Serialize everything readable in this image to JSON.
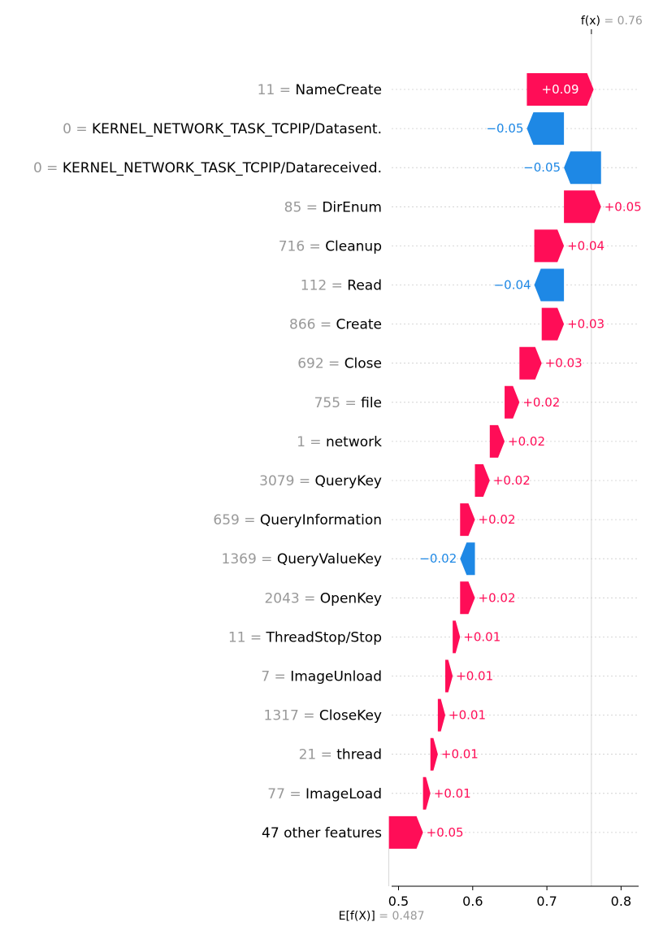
{
  "chart_data": {
    "type": "waterfall",
    "fx_label": "f(x)",
    "fx_value_text": " = 0.76",
    "fx_value": 0.76,
    "ex_label": "E[f(X)]",
    "ex_value_text": " = 0.487",
    "ex_value": 0.487,
    "xlim": [
      0.48,
      0.825
    ],
    "xticks": [
      0.5,
      0.6,
      0.7,
      0.8
    ],
    "xtick_labels": [
      "0.5",
      "0.6",
      "0.7",
      "0.8"
    ],
    "colors": {
      "positive": "#ff0d57",
      "negative": "#1e88e5",
      "value_text": "#999999",
      "label_text": "#000000"
    },
    "features": [
      {
        "value": "11",
        "name": "NameCreate",
        "contribution": 0.09,
        "label": "+0.09"
      },
      {
        "value": "0",
        "name": "KERNEL_NETWORK_TASK_TCPIP/Datasent.",
        "contribution": -0.05,
        "label": "−0.05"
      },
      {
        "value": "0",
        "name": "KERNEL_NETWORK_TASK_TCPIP/Datareceived.",
        "contribution": -0.05,
        "label": "−0.05"
      },
      {
        "value": "85",
        "name": "DirEnum",
        "contribution": 0.05,
        "label": "+0.05"
      },
      {
        "value": "716",
        "name": "Cleanup",
        "contribution": 0.04,
        "label": "+0.04"
      },
      {
        "value": "112",
        "name": "Read",
        "contribution": -0.04,
        "label": "−0.04"
      },
      {
        "value": "866",
        "name": "Create",
        "contribution": 0.03,
        "label": "+0.03"
      },
      {
        "value": "692",
        "name": "Close",
        "contribution": 0.03,
        "label": "+0.03"
      },
      {
        "value": "755",
        "name": "file",
        "contribution": 0.02,
        "label": "+0.02"
      },
      {
        "value": "1",
        "name": "network",
        "contribution": 0.02,
        "label": "+0.02"
      },
      {
        "value": "3079",
        "name": "QueryKey",
        "contribution": 0.02,
        "label": "+0.02"
      },
      {
        "value": "659",
        "name": "QueryInformation",
        "contribution": 0.02,
        "label": "+0.02"
      },
      {
        "value": "1369",
        "name": "QueryValueKey",
        "contribution": -0.02,
        "label": "−0.02"
      },
      {
        "value": "2043",
        "name": "OpenKey",
        "contribution": 0.02,
        "label": "+0.02"
      },
      {
        "value": "11",
        "name": "ThreadStop/Stop",
        "contribution": 0.01,
        "label": "+0.01"
      },
      {
        "value": "7",
        "name": "ImageUnload",
        "contribution": 0.01,
        "label": "+0.01"
      },
      {
        "value": "1317",
        "name": "CloseKey",
        "contribution": 0.01,
        "label": "+0.01"
      },
      {
        "value": "21",
        "name": "thread",
        "contribution": 0.01,
        "label": "+0.01"
      },
      {
        "value": "77",
        "name": "ImageLoad",
        "contribution": 0.01,
        "label": "+0.01"
      },
      {
        "value": "",
        "name": "47 other features",
        "contribution": 0.046,
        "label": "+0.05"
      }
    ]
  }
}
